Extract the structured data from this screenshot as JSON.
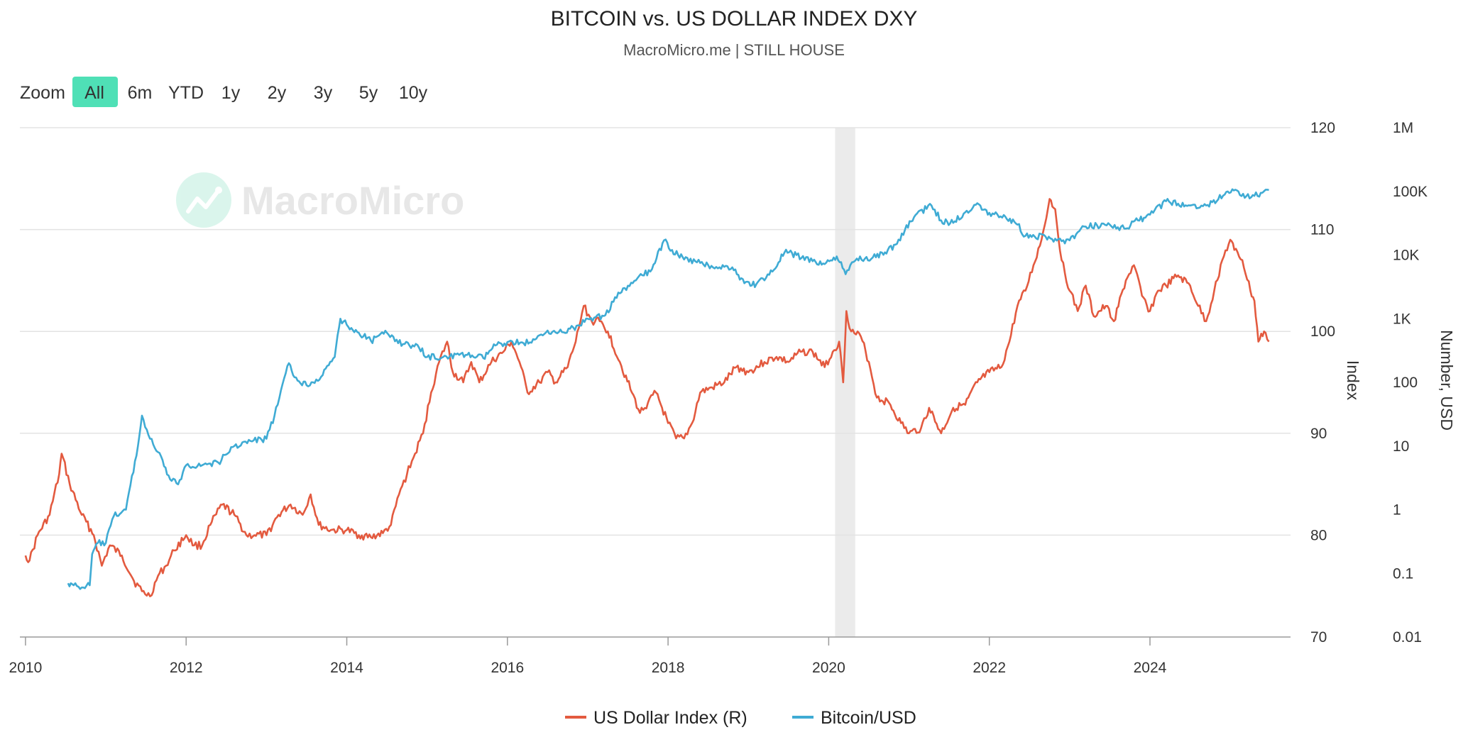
{
  "colors": {
    "dxy": "#e35a3f",
    "btc": "#3fabd4",
    "zoom_active": "#4fe0b6",
    "recession_band": "#ebebeb",
    "grid": "#e3e3e3",
    "watermark": "#d9f5ec"
  },
  "header": {
    "title": "BITCOIN vs. US DOLLAR INDEX DXY",
    "subtitle": "MacroMicro.me | STILL HOUSE"
  },
  "zoom": {
    "label": "Zoom",
    "options": [
      "All",
      "6m",
      "YTD",
      "1y",
      "2y",
      "3y",
      "5y",
      "10y"
    ],
    "active": "All"
  },
  "watermark": {
    "text": "MacroMicro",
    "icon": "macromicro-logo-icon"
  },
  "chart_data": {
    "type": "line",
    "title": "BITCOIN vs. US DOLLAR INDEX DXY",
    "subtitle": "MacroMicro.me | STILL HOUSE",
    "xlim": [
      2009.93,
      2025.75
    ],
    "x_ticks": [
      "2010",
      "2012",
      "2014",
      "2016",
      "2018",
      "2020",
      "2022",
      "2024"
    ],
    "axes": {
      "index": {
        "title": "Index",
        "ylim": [
          70,
          120
        ],
        "ticks": [
          "70",
          "80",
          "90",
          "100",
          "110",
          "120"
        ]
      },
      "usd": {
        "title": "Number, USD",
        "scale": "log",
        "ylim": [
          0.01,
          1000000
        ],
        "ticks": [
          "0.01",
          "0.1",
          "1",
          "10",
          "100",
          "1K",
          "10K",
          "100K",
          "1M"
        ]
      }
    },
    "recession_band": [
      2020.08,
      2020.33
    ],
    "legend_position": "bottom-center",
    "grid": true,
    "series": [
      {
        "name": "US Dollar Index (R)",
        "axis": "index",
        "color": "#e35a3f",
        "points": [
          [
            2010.0,
            78
          ],
          [
            2010.05,
            77.5
          ],
          [
            2010.15,
            80
          ],
          [
            2010.3,
            82
          ],
          [
            2010.42,
            86
          ],
          [
            2010.45,
            88
          ],
          [
            2010.55,
            85
          ],
          [
            2010.7,
            82
          ],
          [
            2010.85,
            80
          ],
          [
            2010.95,
            77
          ],
          [
            2011.05,
            79
          ],
          [
            2011.2,
            78
          ],
          [
            2011.35,
            75.5
          ],
          [
            2011.45,
            74.5
          ],
          [
            2011.55,
            74
          ],
          [
            2011.65,
            76
          ],
          [
            2011.75,
            77
          ],
          [
            2011.85,
            78.5
          ],
          [
            2012.0,
            80
          ],
          [
            2012.1,
            79
          ],
          [
            2012.2,
            79
          ],
          [
            2012.3,
            81
          ],
          [
            2012.45,
            83
          ],
          [
            2012.6,
            82
          ],
          [
            2012.75,
            80
          ],
          [
            2012.85,
            80
          ],
          [
            2013.0,
            80
          ],
          [
            2013.15,
            82
          ],
          [
            2013.3,
            83
          ],
          [
            2013.45,
            82
          ],
          [
            2013.55,
            84
          ],
          [
            2013.65,
            81
          ],
          [
            2013.8,
            80.5
          ],
          [
            2014.0,
            80.5
          ],
          [
            2014.15,
            80
          ],
          [
            2014.3,
            79.8
          ],
          [
            2014.45,
            80.2
          ],
          [
            2014.55,
            81
          ],
          [
            2014.65,
            84
          ],
          [
            2014.75,
            86
          ],
          [
            2014.85,
            88
          ],
          [
            2014.95,
            90
          ],
          [
            2015.05,
            94
          ],
          [
            2015.15,
            97
          ],
          [
            2015.25,
            99
          ],
          [
            2015.32,
            96
          ],
          [
            2015.45,
            95
          ],
          [
            2015.55,
            97
          ],
          [
            2015.65,
            95
          ],
          [
            2015.8,
            97
          ],
          [
            2015.95,
            98
          ],
          [
            2016.05,
            99
          ],
          [
            2016.15,
            97
          ],
          [
            2016.25,
            94
          ],
          [
            2016.4,
            95
          ],
          [
            2016.5,
            96
          ],
          [
            2016.6,
            95
          ],
          [
            2016.75,
            96.5
          ],
          [
            2016.85,
            99
          ],
          [
            2016.95,
            102.5
          ],
          [
            2017.05,
            101
          ],
          [
            2017.15,
            101
          ],
          [
            2017.25,
            100
          ],
          [
            2017.4,
            97
          ],
          [
            2017.55,
            94
          ],
          [
            2017.65,
            92
          ],
          [
            2017.75,
            93
          ],
          [
            2017.85,
            94
          ],
          [
            2018.0,
            91
          ],
          [
            2018.1,
            89.5
          ],
          [
            2018.2,
            89.5
          ],
          [
            2018.3,
            91
          ],
          [
            2018.4,
            94
          ],
          [
            2018.55,
            94.5
          ],
          [
            2018.7,
            95
          ],
          [
            2018.85,
            96.5
          ],
          [
            2019.0,
            96
          ],
          [
            2019.2,
            97
          ],
          [
            2019.35,
            97.5
          ],
          [
            2019.5,
            97
          ],
          [
            2019.65,
            98
          ],
          [
            2019.8,
            98
          ],
          [
            2019.95,
            96.5
          ],
          [
            2020.05,
            98
          ],
          [
            2020.13,
            99
          ],
          [
            2020.18,
            95
          ],
          [
            2020.22,
            102
          ],
          [
            2020.28,
            100
          ],
          [
            2020.4,
            99.5
          ],
          [
            2020.5,
            97
          ],
          [
            2020.6,
            93.5
          ],
          [
            2020.75,
            93
          ],
          [
            2020.9,
            91
          ],
          [
            2021.0,
            90
          ],
          [
            2021.15,
            90.5
          ],
          [
            2021.25,
            92.5
          ],
          [
            2021.4,
            90
          ],
          [
            2021.55,
            92.5
          ],
          [
            2021.7,
            92.8
          ],
          [
            2021.85,
            95
          ],
          [
            2022.0,
            96
          ],
          [
            2022.15,
            96.5
          ],
          [
            2022.25,
            99
          ],
          [
            2022.35,
            102.5
          ],
          [
            2022.45,
            104
          ],
          [
            2022.55,
            106.5
          ],
          [
            2022.65,
            109
          ],
          [
            2022.75,
            113
          ],
          [
            2022.82,
            112
          ],
          [
            2022.9,
            107
          ],
          [
            2023.0,
            104
          ],
          [
            2023.1,
            102
          ],
          [
            2023.2,
            104.5
          ],
          [
            2023.3,
            101.5
          ],
          [
            2023.45,
            102.5
          ],
          [
            2023.55,
            101
          ],
          [
            2023.7,
            105
          ],
          [
            2023.8,
            106.5
          ],
          [
            2023.9,
            103.5
          ],
          [
            2024.0,
            102
          ],
          [
            2024.1,
            104
          ],
          [
            2024.2,
            104.5
          ],
          [
            2024.35,
            105.5
          ],
          [
            2024.5,
            104.5
          ],
          [
            2024.6,
            102.5
          ],
          [
            2024.7,
            101
          ],
          [
            2024.8,
            104
          ],
          [
            2024.9,
            107
          ],
          [
            2025.0,
            109
          ],
          [
            2025.05,
            108
          ],
          [
            2025.15,
            107
          ],
          [
            2025.25,
            104
          ],
          [
            2025.3,
            103
          ],
          [
            2025.35,
            99
          ],
          [
            2025.42,
            100
          ],
          [
            2025.48,
            99
          ]
        ]
      },
      {
        "name": "Bitcoin/USD",
        "axis": "usd",
        "color": "#3fabd4",
        "points": [
          [
            2010.53,
            0.07
          ],
          [
            2010.6,
            0.065
          ],
          [
            2010.7,
            0.06
          ],
          [
            2010.8,
            0.065
          ],
          [
            2010.83,
            0.2
          ],
          [
            2010.9,
            0.3
          ],
          [
            2011.0,
            0.3
          ],
          [
            2011.1,
            0.8
          ],
          [
            2011.25,
            1
          ],
          [
            2011.4,
            10
          ],
          [
            2011.45,
            30
          ],
          [
            2011.55,
            13
          ],
          [
            2011.65,
            8
          ],
          [
            2011.8,
            3
          ],
          [
            2011.9,
            2.5
          ],
          [
            2012.0,
            5
          ],
          [
            2012.2,
            5
          ],
          [
            2012.4,
            5.5
          ],
          [
            2012.6,
            10
          ],
          [
            2012.8,
            12
          ],
          [
            2013.0,
            13
          ],
          [
            2013.1,
            30
          ],
          [
            2013.28,
            200
          ],
          [
            2013.35,
            120
          ],
          [
            2013.5,
            90
          ],
          [
            2013.7,
            130
          ],
          [
            2013.85,
            250
          ],
          [
            2013.92,
            1000
          ],
          [
            2014.0,
            800
          ],
          [
            2014.15,
            600
          ],
          [
            2014.3,
            450
          ],
          [
            2014.5,
            600
          ],
          [
            2014.7,
            400
          ],
          [
            2014.9,
            350
          ],
          [
            2015.0,
            250
          ],
          [
            2015.2,
            250
          ],
          [
            2015.5,
            270
          ],
          [
            2015.7,
            240
          ],
          [
            2015.85,
            380
          ],
          [
            2016.0,
            430
          ],
          [
            2016.3,
            420
          ],
          [
            2016.5,
            650
          ],
          [
            2016.7,
            610
          ],
          [
            2016.9,
            780
          ],
          [
            2017.0,
            1000
          ],
          [
            2017.2,
            1100
          ],
          [
            2017.4,
            2500
          ],
          [
            2017.6,
            4000
          ],
          [
            2017.8,
            6000
          ],
          [
            2017.95,
            17000
          ],
          [
            2018.05,
            12000
          ],
          [
            2018.2,
            8500
          ],
          [
            2018.4,
            7500
          ],
          [
            2018.6,
            6500
          ],
          [
            2018.8,
            6400
          ],
          [
            2018.95,
            3600
          ],
          [
            2019.1,
            3500
          ],
          [
            2019.3,
            5500
          ],
          [
            2019.45,
            11000
          ],
          [
            2019.6,
            10000
          ],
          [
            2019.8,
            8000
          ],
          [
            2019.95,
            7200
          ],
          [
            2020.1,
            9500
          ],
          [
            2020.21,
            5000
          ],
          [
            2020.35,
            8800
          ],
          [
            2020.55,
            9200
          ],
          [
            2020.7,
            11000
          ],
          [
            2020.85,
            15000
          ],
          [
            2020.95,
            25000
          ],
          [
            2021.1,
            45000
          ],
          [
            2021.28,
            60000
          ],
          [
            2021.4,
            35000
          ],
          [
            2021.55,
            32000
          ],
          [
            2021.7,
            47000
          ],
          [
            2021.85,
            65000
          ],
          [
            2022.0,
            46000
          ],
          [
            2022.2,
            40000
          ],
          [
            2022.35,
            30000
          ],
          [
            2022.45,
            20000
          ],
          [
            2022.7,
            19500
          ],
          [
            2022.9,
            16500
          ],
          [
            2023.0,
            17000
          ],
          [
            2023.2,
            28000
          ],
          [
            2023.5,
            30000
          ],
          [
            2023.7,
            26000
          ],
          [
            2023.85,
            35000
          ],
          [
            2024.0,
            43000
          ],
          [
            2024.2,
            70000
          ],
          [
            2024.35,
            64000
          ],
          [
            2024.5,
            60000
          ],
          [
            2024.7,
            60000
          ],
          [
            2024.85,
            75000
          ],
          [
            2024.95,
            98000
          ],
          [
            2025.1,
            100000
          ],
          [
            2025.2,
            84000
          ],
          [
            2025.3,
            85000
          ],
          [
            2025.4,
            95000
          ],
          [
            2025.48,
            105000
          ]
        ]
      }
    ]
  },
  "legend": {
    "items": [
      {
        "label": "US Dollar Index (R)",
        "color": "#e35a3f"
      },
      {
        "label": "Bitcoin/USD",
        "color": "#3fabd4"
      }
    ]
  }
}
